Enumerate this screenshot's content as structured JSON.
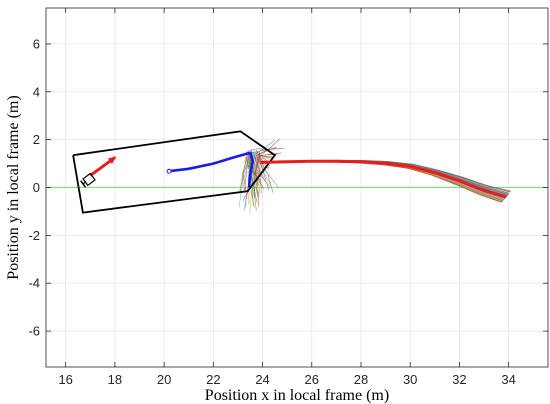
{
  "chart_data": {
    "type": "line",
    "xlabel": "Position x in local frame (m)",
    "ylabel": "Position y in local frame (m)",
    "xlim": [
      15.2,
      35.6
    ],
    "ylim": [
      -7.5,
      7.5
    ],
    "xticks": [
      16,
      18,
      20,
      22,
      24,
      26,
      28,
      30,
      32,
      34
    ],
    "yticks": [
      -6,
      -4,
      -2,
      0,
      2,
      4,
      6
    ],
    "grid": true,
    "series": [
      {
        "role": "reference-line",
        "color": "#66ee66",
        "points": [
          [
            15.2,
            0.0
          ],
          [
            35.6,
            0.0
          ]
        ]
      },
      {
        "role": "parking-boundary",
        "color": "#000000",
        "points": [
          [
            16.3,
            1.35
          ],
          [
            23.1,
            2.35
          ],
          [
            24.5,
            1.35
          ],
          [
            23.4,
            -0.15
          ],
          [
            16.7,
            -1.05
          ],
          [
            16.3,
            1.35
          ]
        ]
      },
      {
        "role": "planned-path-blue",
        "color": "#1a1aee",
        "points": [
          [
            20.2,
            0.68
          ],
          [
            21.0,
            0.78
          ],
          [
            22.0,
            1.0
          ],
          [
            22.8,
            1.25
          ],
          [
            23.5,
            1.45
          ],
          [
            23.6,
            1.1
          ],
          [
            23.5,
            0.5
          ],
          [
            23.45,
            0.0
          ]
        ]
      },
      {
        "role": "predicted-path-red",
        "color": "#e81c1c",
        "points": [
          [
            23.9,
            1.05
          ],
          [
            25.0,
            1.08
          ],
          [
            26.0,
            1.1
          ],
          [
            27.0,
            1.1
          ],
          [
            28.0,
            1.08
          ],
          [
            29.0,
            1.02
          ],
          [
            30.0,
            0.88
          ],
          [
            31.0,
            0.62
          ],
          [
            32.0,
            0.28
          ],
          [
            33.0,
            -0.12
          ],
          [
            33.9,
            -0.4
          ]
        ]
      }
    ],
    "markers": [
      {
        "role": "start-point",
        "color": "#1a1aee",
        "x": 20.2,
        "y": 0.68
      },
      {
        "role": "vehicle-heading-arrow",
        "color": "#e81c1c",
        "x": 17.0,
        "y": 0.5,
        "dx": 1.0,
        "dy": 0.75
      },
      {
        "role": "vehicle-body",
        "color": "#000000",
        "x": 16.9,
        "y": 0.3
      }
    ],
    "sample_fan_colors": [
      "#4cb4e0",
      "#e87d2b",
      "#3aa03a",
      "#d62728",
      "#9467bd",
      "#2ca0a0",
      "#e0b03a",
      "#8c564b"
    ]
  }
}
